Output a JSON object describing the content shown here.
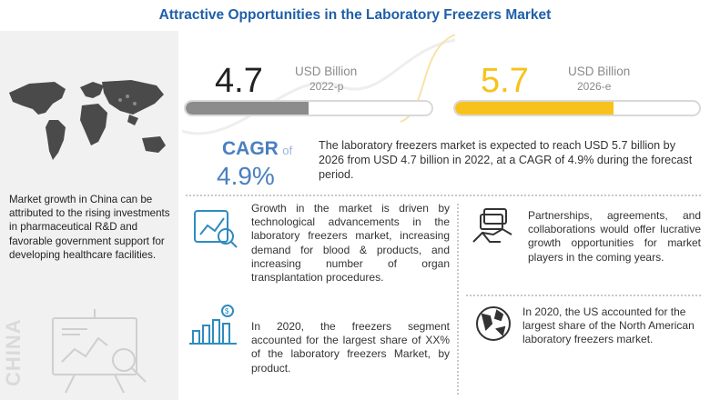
{
  "header": {
    "title": "Attractive Opportunities in the Laboratory Freezers Market"
  },
  "market_2022": {
    "value": "4.7",
    "unit": "USD Billion",
    "year": "2022-p",
    "fill_fraction": 0.5,
    "fill_color": "#8c8c8c"
  },
  "market_2026": {
    "value": "5.7",
    "unit": "USD Billion",
    "year": "2026-e",
    "fill_fraction": 0.65,
    "fill_color": "#f7c21b"
  },
  "cagr": {
    "label": "CAGR",
    "of": "of",
    "value": "4.9%",
    "description": "The laboratory freezers market is expected to reach USD 5.7 billion by 2026 from USD 4.7 billion in 2022, at a CAGR of 4.9% during the forecast period."
  },
  "left_panel": {
    "text": "Market growth in China can be attributed to the rising investments in pharmaceutical R&D and favorable government support for developing healthcare facilities.",
    "region_label": "CHINA"
  },
  "insights": [
    {
      "icon": "growth-chart-icon",
      "text": "Growth in the market is driven by technological advancements in the laboratory freezers market, increasing demand for blood & products, and increasing number of organ transplantation procedures."
    },
    {
      "icon": "handshake-icon",
      "text": "Partnerships, agreements, and collaborations would offer lucrative growth opportunities for market players in the coming years."
    },
    {
      "icon": "revenue-bar-icon",
      "text": "In 2020, the freezers segment accounted for the largest share of XX% of the laboratory freezers Market, by product."
    },
    {
      "icon": "globe-icon",
      "text": "In 2020, the US accounted for the largest share of the North American laboratory freezers market."
    }
  ],
  "colors": {
    "title": "#1f5fa8",
    "cagr": "#4a7fc1",
    "accent_yellow": "#f7c21b",
    "gray_bar": "#8c8c8c"
  }
}
